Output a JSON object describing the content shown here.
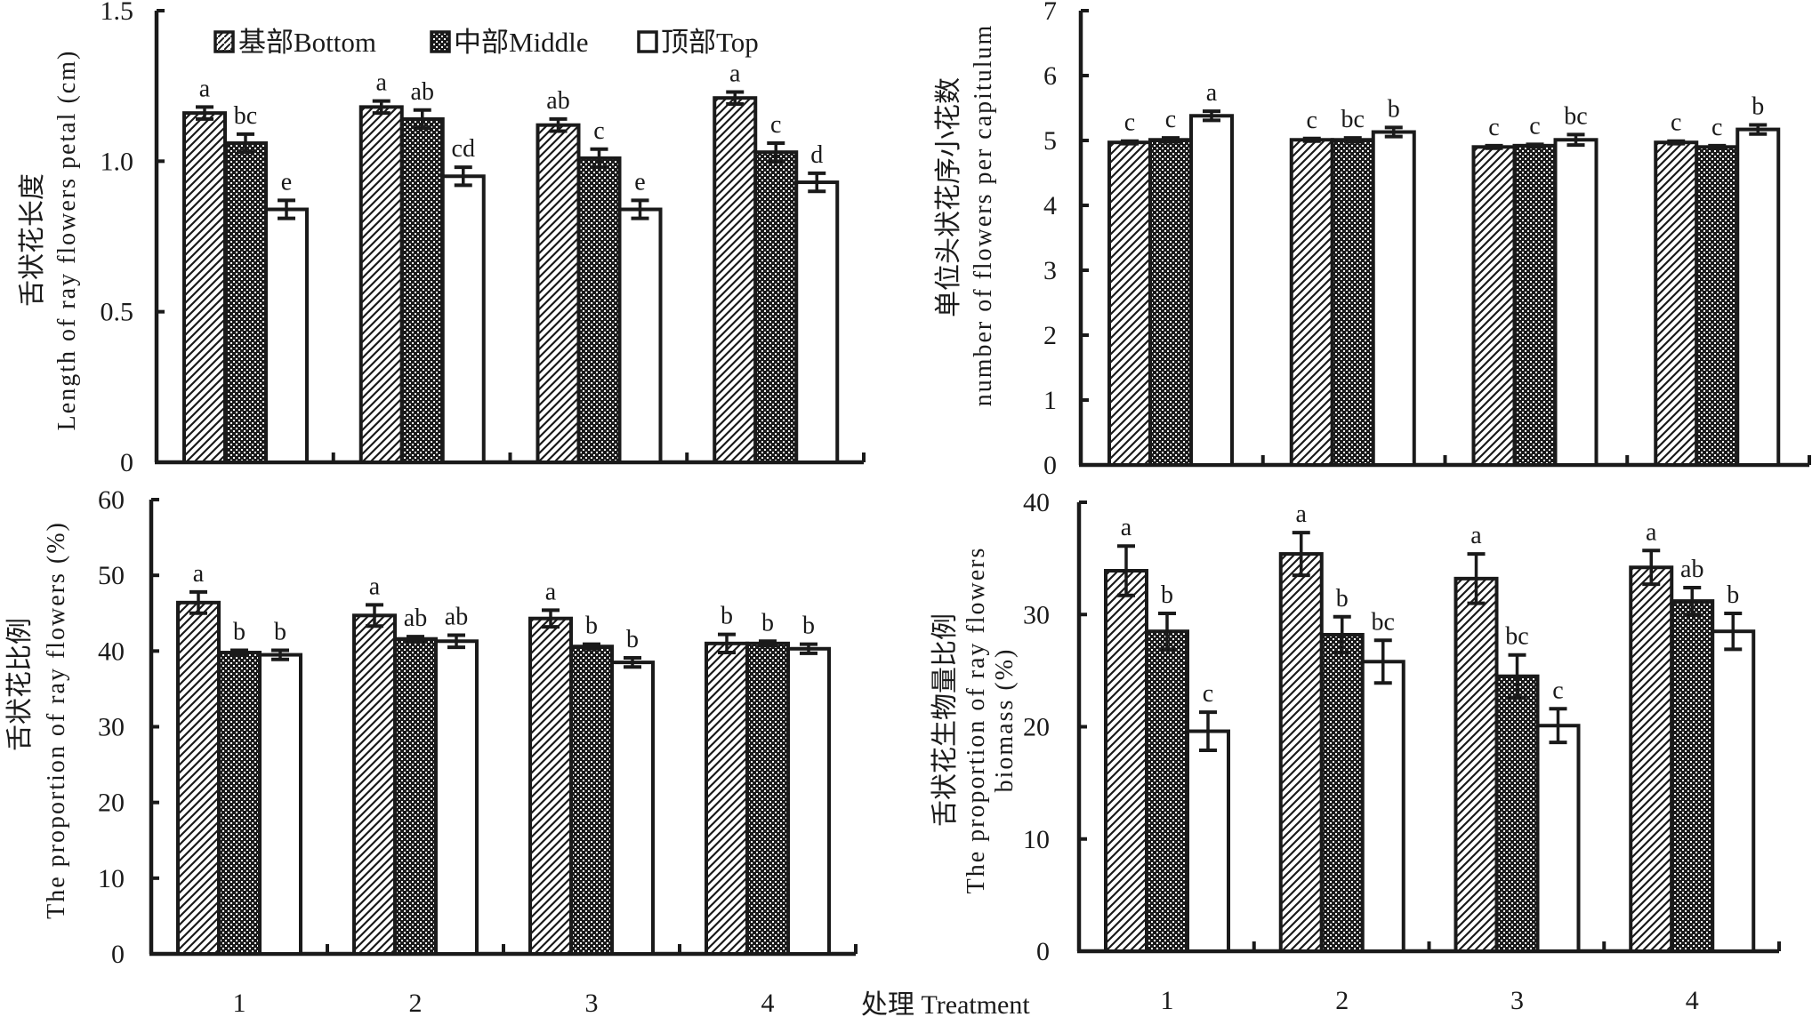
{
  "legend": [
    {
      "label": "基部Bottom",
      "pattern": "hatch"
    },
    {
      "label": "中部Middle",
      "pattern": "cross"
    },
    {
      "label": "顶部Top",
      "pattern": "white"
    }
  ],
  "x_axis_title": "处理 Treatment",
  "colors": {
    "ink": "#1a1a1a",
    "background": "#ffffff"
  },
  "chart_data": [
    {
      "type": "bar",
      "id": "petal-length",
      "ylabel_cn": "舌状花长度",
      "ylabel_en": "Length of ray flowers petal (cm)",
      "categories": [
        "1",
        "2",
        "3",
        "4"
      ],
      "show_category_labels": false,
      "ylim": [
        0,
        1.5
      ],
      "yticks": [
        "0",
        "0.5",
        "1.0",
        "1.5"
      ],
      "ytick_values": [
        0,
        0.5,
        1.0,
        1.5
      ],
      "legend": "top-left",
      "series": [
        {
          "name": "基部Bottom",
          "values": [
            1.16,
            1.18,
            1.12,
            1.21
          ],
          "errors": [
            0.02,
            0.02,
            0.02,
            0.02
          ],
          "letters": [
            "a",
            "a",
            "ab",
            "a"
          ]
        },
        {
          "name": "中部Middle",
          "values": [
            1.06,
            1.14,
            1.01,
            1.03
          ],
          "errors": [
            0.03,
            0.03,
            0.03,
            0.03
          ],
          "letters": [
            "bc",
            "ab",
            "c",
            "c"
          ]
        },
        {
          "name": "顶部Top",
          "values": [
            0.84,
            0.95,
            0.84,
            0.93
          ],
          "errors": [
            0.03,
            0.03,
            0.03,
            0.03
          ],
          "letters": [
            "e",
            "cd",
            "e",
            "d"
          ]
        }
      ]
    },
    {
      "type": "bar",
      "id": "flowers-per-capitulum",
      "ylabel_cn": "单位头状花序小花数",
      "ylabel_en": "number of flowers per capitulum",
      "categories": [
        "1",
        "2",
        "3",
        "4"
      ],
      "show_category_labels": false,
      "ylim": [
        0,
        7
      ],
      "yticks": [
        "0",
        "1",
        "2",
        "3",
        "4",
        "5",
        "6",
        "7"
      ],
      "ytick_values": [
        0,
        1,
        2,
        3,
        4,
        5,
        6,
        7
      ],
      "series": [
        {
          "name": "基部Bottom",
          "values": [
            4.97,
            5.01,
            4.9,
            4.97
          ],
          "errors": [
            0.02,
            0.02,
            0.02,
            0.02
          ],
          "letters": [
            "c",
            "c",
            "c",
            "c"
          ]
        },
        {
          "name": "中部Middle",
          "values": [
            5.01,
            5.01,
            4.92,
            4.9
          ],
          "errors": [
            0.03,
            0.03,
            0.02,
            0.02
          ],
          "letters": [
            "c",
            "bc",
            "c",
            "c"
          ]
        },
        {
          "name": "顶部Top",
          "values": [
            5.38,
            5.13,
            5.01,
            5.17
          ],
          "errors": [
            0.07,
            0.07,
            0.08,
            0.07
          ],
          "letters": [
            "a",
            "b",
            "bc",
            "b"
          ]
        }
      ]
    },
    {
      "type": "bar",
      "id": "ray-flower-proportion",
      "ylabel_cn": "舌状花比例",
      "ylabel_en": "The proportion of ray flowers (%)",
      "categories": [
        "1",
        "2",
        "3",
        "4"
      ],
      "show_category_labels": true,
      "ylim": [
        0,
        60
      ],
      "yticks": [
        "0",
        "10",
        "20",
        "30",
        "40",
        "50",
        "60"
      ],
      "ytick_values": [
        0,
        10,
        20,
        30,
        40,
        50,
        60
      ],
      "series": [
        {
          "name": "基部Bottom",
          "values": [
            46.4,
            44.7,
            44.3,
            41.0
          ],
          "errors": [
            1.4,
            1.4,
            1.1,
            1.2
          ],
          "letters": [
            "a",
            "a",
            "a",
            "b"
          ]
        },
        {
          "name": "中部Middle",
          "values": [
            39.8,
            41.6,
            40.6,
            41.0
          ],
          "errors": [
            0.3,
            0.3,
            0.3,
            0.3
          ],
          "letters": [
            "b",
            "ab",
            "b",
            "b"
          ]
        },
        {
          "name": "顶部Top",
          "values": [
            39.5,
            41.3,
            38.5,
            40.3
          ],
          "errors": [
            0.6,
            0.8,
            0.6,
            0.6
          ],
          "letters": [
            "b",
            "ab",
            "b",
            "b"
          ]
        }
      ]
    },
    {
      "type": "bar",
      "id": "ray-flower-biomass",
      "ylabel_cn": "舌状花生物量比例",
      "ylabel_en": "The proportion of ray flowers",
      "ylabel_en2": "biomass (%)",
      "categories": [
        "1",
        "2",
        "3",
        "4"
      ],
      "show_category_labels": true,
      "ylim": [
        0,
        40
      ],
      "yticks": [
        "0",
        "10",
        "20",
        "30",
        "40"
      ],
      "ytick_values": [
        0,
        10,
        20,
        30,
        40
      ],
      "series": [
        {
          "name": "基部Bottom",
          "values": [
            33.9,
            35.4,
            33.2,
            34.2
          ],
          "errors": [
            2.2,
            1.9,
            2.2,
            1.5
          ],
          "letters": [
            "a",
            "a",
            "a",
            "a"
          ]
        },
        {
          "name": "中部Middle",
          "values": [
            28.5,
            28.2,
            24.5,
            31.2
          ],
          "errors": [
            1.6,
            1.6,
            1.9,
            1.2
          ],
          "letters": [
            "b",
            "b",
            "bc",
            "ab"
          ]
        },
        {
          "name": "顶部Top",
          "values": [
            19.6,
            25.8,
            20.1,
            28.5
          ],
          "errors": [
            1.7,
            1.9,
            1.5,
            1.6
          ],
          "letters": [
            "c",
            "bc",
            "c",
            "b"
          ]
        }
      ]
    }
  ]
}
